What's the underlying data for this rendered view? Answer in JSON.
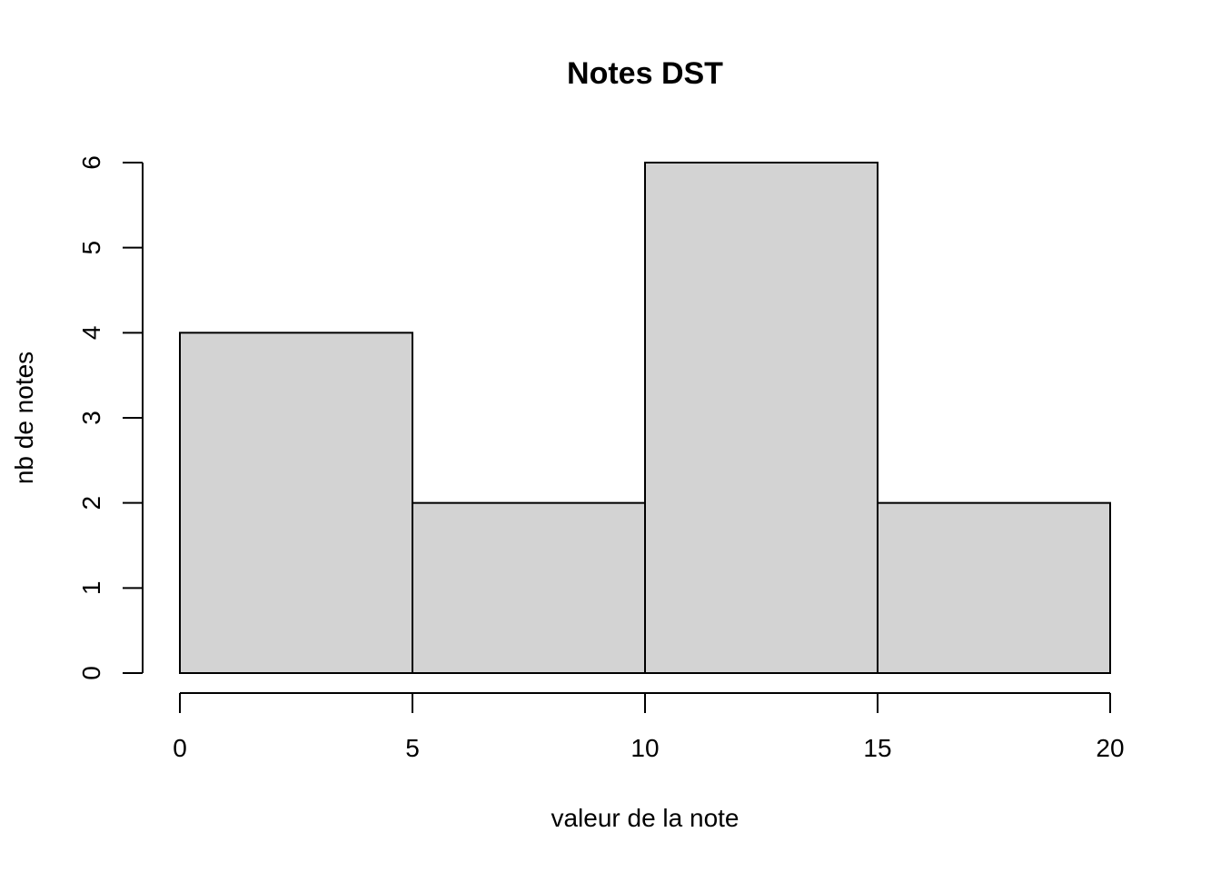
{
  "chart_data": {
    "type": "bar",
    "subtype": "histogram",
    "title": "Notes DST",
    "xlabel": "valeur de la note",
    "ylabel": "nb de notes",
    "bins": [
      {
        "start": 0,
        "end": 5,
        "count": 4
      },
      {
        "start": 5,
        "end": 10,
        "count": 2
      },
      {
        "start": 10,
        "end": 15,
        "count": 6
      },
      {
        "start": 15,
        "end": 20,
        "count": 2
      }
    ],
    "xlim": [
      0,
      20
    ],
    "ylim": [
      0,
      6
    ],
    "x_ticks": [
      0,
      5,
      10,
      15,
      20
    ],
    "y_ticks": [
      0,
      1,
      2,
      3,
      4,
      5,
      6
    ],
    "bar_color": "#d3d3d3",
    "grid": false,
    "legend": "none"
  }
}
